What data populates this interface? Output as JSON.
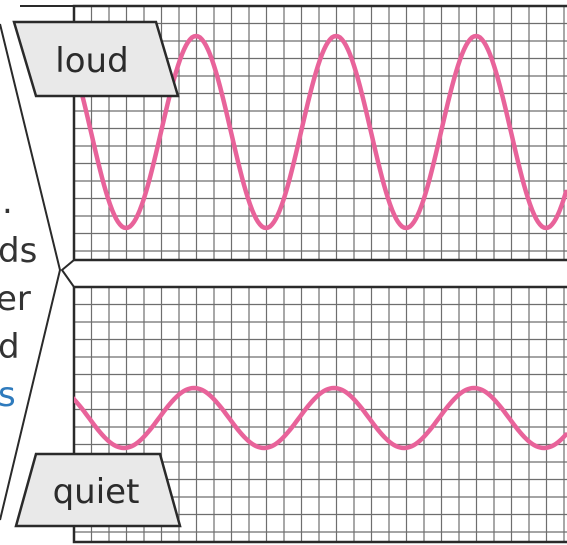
{
  "panels": {
    "top": {
      "label": "loud"
    },
    "bottom": {
      "label": "quiet"
    }
  },
  "side_text_fragments": [
    ".",
    "ds",
    "er",
    "d",
    "s"
  ],
  "colors": {
    "wave": "#e8639a",
    "grid": "#6e6e6e",
    "frame": "#2a2a2a",
    "label_fill": "#e9e9e9",
    "side_text": "#333333",
    "side_text_accent": "#2f7bbd"
  }
}
